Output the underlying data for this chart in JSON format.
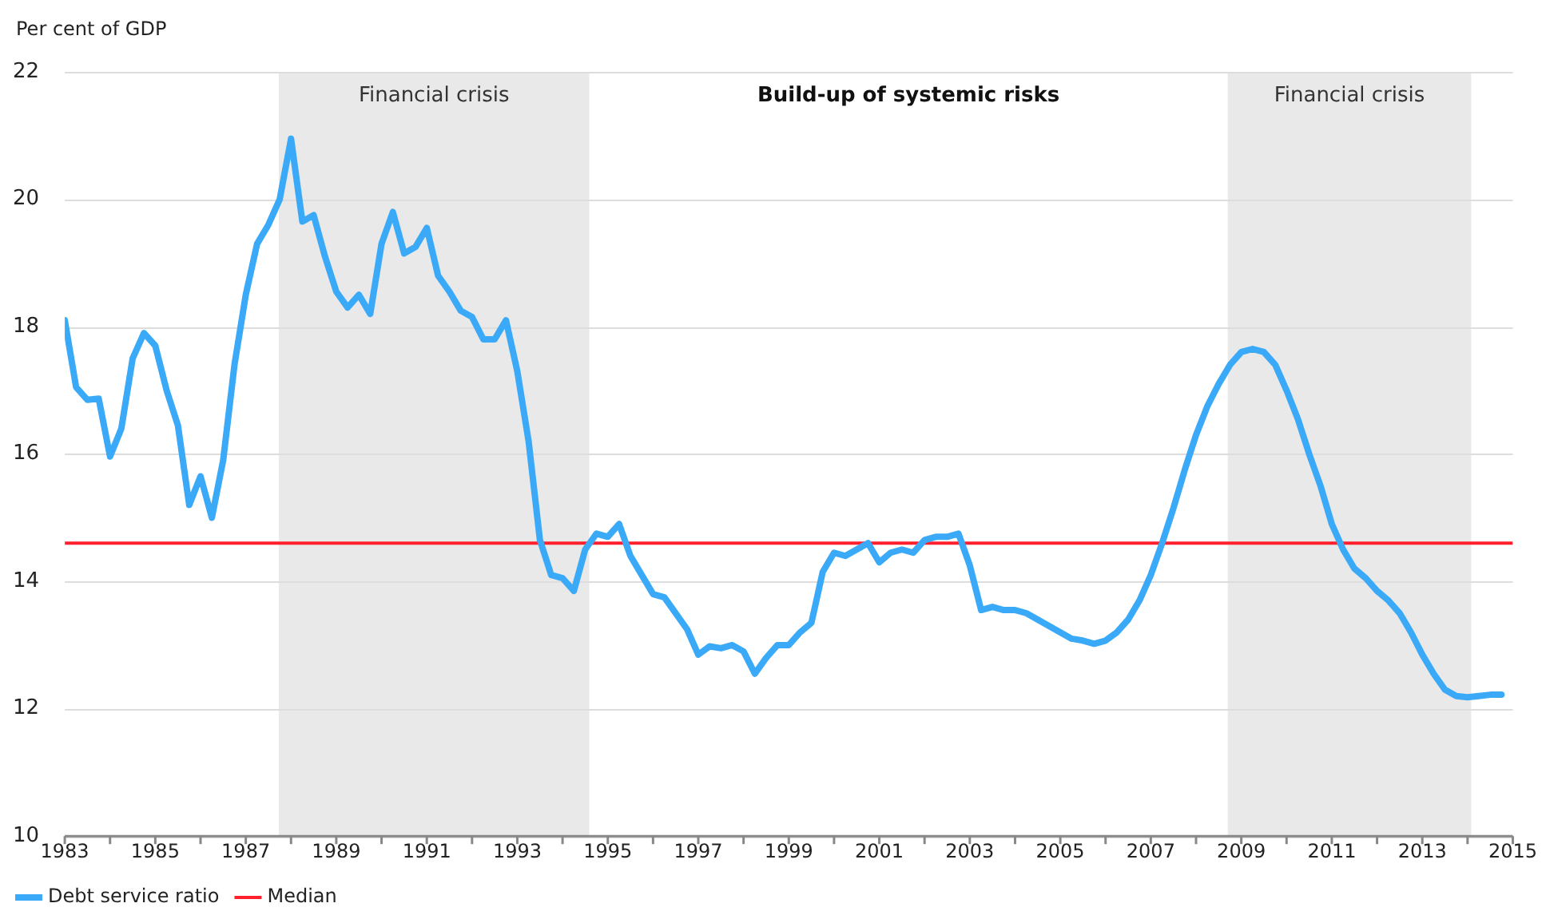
{
  "chart_data": {
    "type": "line",
    "ylabel": "Per cent of GDP",
    "x": [
      1983,
      1983.25,
      1983.5,
      1983.75,
      1984,
      1984.25,
      1984.5,
      1984.75,
      1985,
      1985.25,
      1985.5,
      1985.75,
      1986,
      1986.25,
      1986.5,
      1986.75,
      1987,
      1987.25,
      1987.5,
      1987.75,
      1988,
      1988.25,
      1988.5,
      1988.75,
      1989,
      1989.25,
      1989.5,
      1989.75,
      1990,
      1990.25,
      1990.5,
      1990.75,
      1991,
      1991.25,
      1991.5,
      1991.75,
      1992,
      1992.25,
      1992.5,
      1992.75,
      1993,
      1993.25,
      1993.5,
      1993.75,
      1994,
      1994.25,
      1994.5,
      1994.75,
      1995,
      1995.25,
      1995.5,
      1995.75,
      1996,
      1996.25,
      1996.5,
      1996.75,
      1997,
      1997.25,
      1997.5,
      1997.75,
      1998,
      1998.25,
      1998.5,
      1998.75,
      1999,
      1999.25,
      1999.5,
      1999.75,
      2000,
      2000.25,
      2000.5,
      2000.75,
      2001,
      2001.25,
      2001.5,
      2001.75,
      2002,
      2002.25,
      2002.5,
      2002.75,
      2003,
      2003.25,
      2003.5,
      2003.75,
      2004,
      2004.25,
      2004.5,
      2004.75,
      2005,
      2005.25,
      2005.5,
      2005.75,
      2006,
      2006.25,
      2006.5,
      2006.75,
      2007,
      2007.25,
      2007.5,
      2007.75,
      2008,
      2008.25,
      2008.5,
      2008.75,
      2009,
      2009.25,
      2009.5,
      2009.75,
      2010,
      2010.25,
      2010.5,
      2010.75,
      2011,
      2011.25,
      2011.5,
      2011.75,
      2012,
      2012.25,
      2012.5,
      2012.75,
      2013,
      2013.25,
      2013.5,
      2013.75,
      2014,
      2014.25,
      2014.5,
      2014.75
    ],
    "series": [
      {
        "name": "Debt service ratio",
        "color": "#3aa9f7",
        "values": [
          18.1,
          17.05,
          16.85,
          16.87,
          15.96,
          16.4,
          17.5,
          17.9,
          17.7,
          17.0,
          16.45,
          15.2,
          15.65,
          15.0,
          15.9,
          17.4,
          18.5,
          19.3,
          19.6,
          20.0,
          20.95,
          19.65,
          19.75,
          19.1,
          18.55,
          18.3,
          18.5,
          18.2,
          19.3,
          19.8,
          19.15,
          19.25,
          19.55,
          18.8,
          18.55,
          18.25,
          18.15,
          17.8,
          17.8,
          18.1,
          17.3,
          16.2,
          14.65,
          14.1,
          14.05,
          13.85,
          14.5,
          14.75,
          14.7,
          14.9,
          14.4,
          14.1,
          13.8,
          13.75,
          13.5,
          13.25,
          12.85,
          12.98,
          12.95,
          13.0,
          12.9,
          12.55,
          12.8,
          13.0,
          13.0,
          13.2,
          13.35,
          14.15,
          14.45,
          14.4,
          14.5,
          14.6,
          14.3,
          14.45,
          14.5,
          14.45,
          14.65,
          14.7,
          14.7,
          14.75,
          14.25,
          13.55,
          13.6,
          13.55,
          13.55,
          13.5,
          13.4,
          13.3,
          13.2,
          13.1,
          13.07,
          13.02,
          13.07,
          13.2,
          13.4,
          13.7,
          14.1,
          14.6,
          15.15,
          15.75,
          16.3,
          16.75,
          17.1,
          17.4,
          17.6,
          17.65,
          17.6,
          17.4,
          17.0,
          16.55,
          16.0,
          15.5,
          14.9,
          14.5,
          14.2,
          14.05,
          13.85,
          13.7,
          13.5,
          13.2,
          12.85,
          12.55,
          12.3,
          12.2,
          12.18,
          12.2,
          12.22,
          12.22
        ]
      }
    ],
    "ref_lines": [
      {
        "axis": "y",
        "value": 14.6,
        "label": "Median",
        "color": "#ff1f2d"
      }
    ],
    "bands": [
      {
        "axis": "x",
        "from": 1987.73,
        "to": 1994.59,
        "label": "Financial crisis",
        "color": "#e9e9e9"
      },
      {
        "axis": "x",
        "from": 2008.7,
        "to": 2014.08,
        "label": "Financial crisis",
        "color": "#e9e9e9"
      }
    ],
    "annotations": [
      "Build-up of systemic risks"
    ],
    "xlim": [
      1983,
      2015
    ],
    "ylim": [
      10,
      22
    ],
    "xticks": [
      1983,
      {
        "value": 1984,
        "label": null
      },
      1985,
      {
        "value": 1986,
        "label": null
      },
      1987,
      {
        "value": 1988,
        "label": null
      },
      1989,
      {
        "value": 1990,
        "label": null
      },
      1991,
      {
        "value": 1992,
        "label": null
      },
      1993,
      {
        "value": 1994,
        "label": null
      },
      1995,
      {
        "value": 1996,
        "label": null
      },
      1997,
      {
        "value": 1998,
        "label": null
      },
      1999,
      {
        "value": 2000,
        "label": null
      },
      2001,
      {
        "value": 2002,
        "label": null
      },
      2003,
      {
        "value": 2004,
        "label": null
      },
      2005,
      {
        "value": 2006,
        "label": null
      },
      2007,
      {
        "value": 2008,
        "label": null
      },
      2009,
      {
        "value": 2010,
        "label": null
      },
      2011,
      {
        "value": 2012,
        "label": null
      },
      2013,
      {
        "value": 2014,
        "label": null
      },
      2015
    ],
    "yticks": [
      10,
      12,
      14,
      16,
      18,
      20,
      22
    ],
    "grid": "y",
    "legend": "bottom left",
    "marker": "none",
    "line_style": "solid"
  }
}
